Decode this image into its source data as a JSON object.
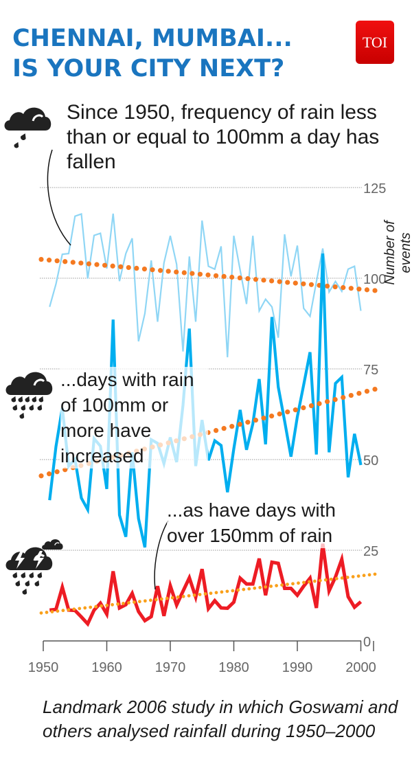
{
  "header": {
    "title_line1": "CHENNAI, MUMBAI...",
    "title_line2": "IS YOUR CITY NEXT?",
    "logo": "TOI"
  },
  "annotations": {
    "light": "Since 1950, frequency of rain less than or equal to 100mm a day has fallen",
    "heavy": "...days with rain of 100mm or more have increased",
    "extreme": "...as have days with over 150mm of rain"
  },
  "icons": [
    "cloud-light-rain-icon",
    "cloud-heavy-rain-icon",
    "cloud-thunderstorm-icon"
  ],
  "footer": "Landmark 2006 study in which Goswami and others analysed rainfall during 1950–2000",
  "colors": {
    "title": "#1a75bf",
    "light": "#8fd6f5",
    "heavy": "#00aeef",
    "extreme": "#ed1c24",
    "trend1": "#f47920",
    "trend3": "#f9a01b",
    "logo": "#e30613"
  },
  "chart_data": {
    "type": "line",
    "ylabel": "Number of events",
    "ylim": [
      0,
      125
    ],
    "yticks": [
      0,
      25,
      50,
      75,
      100,
      125
    ],
    "xlim": [
      1950,
      2002
    ],
    "xticks": [
      1950,
      1960,
      1970,
      1980,
      1990,
      2000
    ],
    "grid": "horizontal dotted",
    "x_start": 1951,
    "series": [
      {
        "key": "light",
        "values": [
          92.1,
          98.4,
          106.6,
          106.8,
          117.1,
          117.7,
          99.9,
          111.8,
          112.4,
          102.7,
          117.8,
          99.2,
          106.8,
          111.0,
          82.6,
          90.3,
          104.9,
          88.0,
          104.2,
          111.7,
          103.8,
          79.8,
          106.0,
          88.0,
          115.9,
          103.3,
          102.5,
          108.8,
          78.2,
          111.7,
          102.2,
          92.9,
          111.7,
          91.0,
          94.2,
          92.1,
          83.6,
          112.1,
          100.5,
          109.0,
          91.7,
          89.5,
          99.0,
          108.2,
          96.2,
          99.1,
          96.4,
          102.5,
          103.3,
          91.0
        ],
        "trend": [
          105.2,
          96.6
        ]
      },
      {
        "key": "heavy",
        "values": [
          38.8,
          53.6,
          64.2,
          48.2,
          50.1,
          39.4,
          36.2,
          55.8,
          53.7,
          41.9,
          88.6,
          34.7,
          28.7,
          52.0,
          33.7,
          25.8,
          55.5,
          54.5,
          48.9,
          56.1,
          49.3,
          65.0,
          86.1,
          48.2,
          60.9,
          49.8,
          55.2,
          53.9,
          41.0,
          53.0,
          63.7,
          52.7,
          59.9,
          72.2,
          54.2,
          89.3,
          70.0,
          60.6,
          50.8,
          61.8,
          70.6,
          79.6,
          51.4,
          106.8,
          52.0,
          71.0,
          72.7,
          45.1,
          57.1,
          48.5
        ],
        "trend": [
          45.5,
          69.4
        ]
      },
      {
        "key": "extreme",
        "values": [
          8.5,
          8.7,
          14.8,
          8.5,
          8.4,
          6.6,
          4.7,
          8.5,
          10.4,
          7.4,
          19.2,
          9.1,
          10.0,
          13.1,
          8.1,
          5.6,
          6.7,
          15.1,
          6.9,
          15.2,
          9.9,
          13.7,
          17.4,
          12.1,
          19.8,
          8.9,
          11.1,
          9.1,
          9.0,
          10.7,
          17.3,
          15.7,
          15.7,
          22.7,
          12.6,
          21.7,
          21.4,
          14.5,
          14.5,
          12.6,
          15.1,
          17.3,
          9.1,
          26.8,
          13.8,
          17.6,
          22.5,
          12.2,
          9.3,
          10.8
        ],
        "trend": [
          7.7,
          18.4
        ]
      }
    ]
  }
}
